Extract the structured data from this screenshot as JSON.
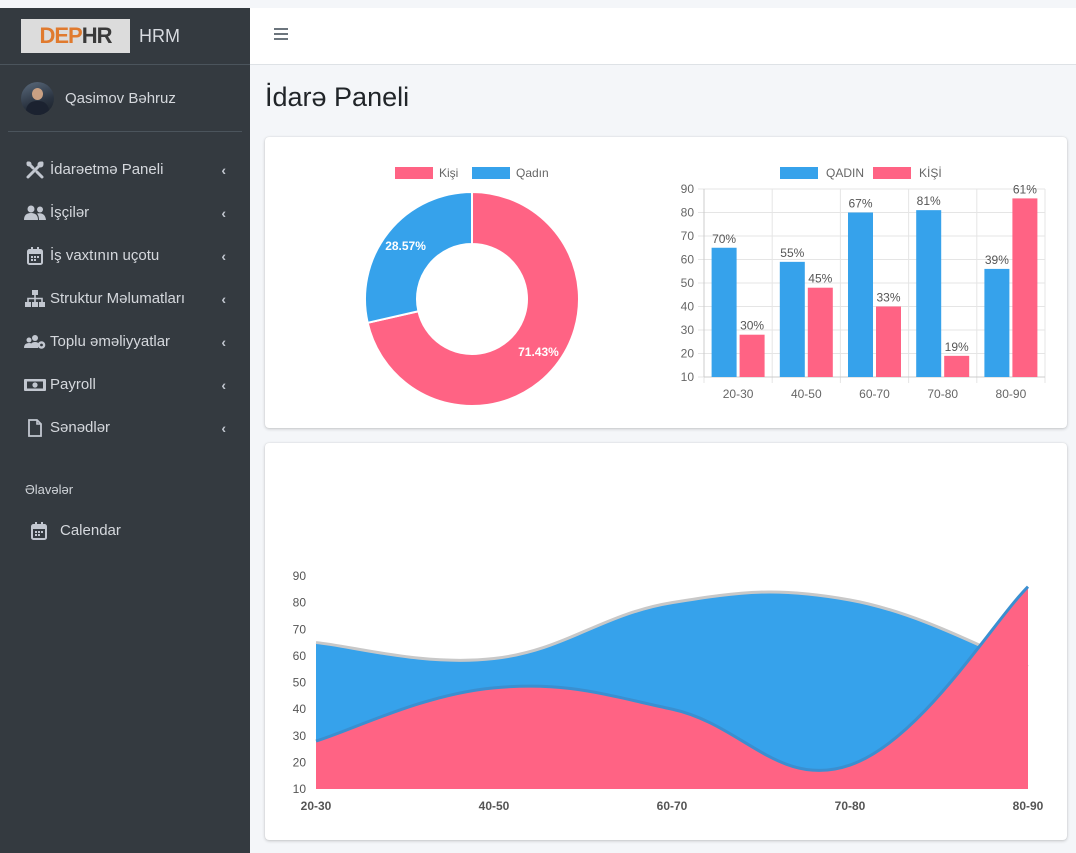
{
  "brand": {
    "logo_dep": "DEP",
    "logo_hr": "HR",
    "app_name": "HRM"
  },
  "user": {
    "name": "Qasimov Bəhruz"
  },
  "sidebar": {
    "items": [
      {
        "label": "İdarəetmə Paneli",
        "icon": "tools-icon"
      },
      {
        "label": "İşçilər",
        "icon": "users-icon"
      },
      {
        "label": "İş vaxtının uçotu",
        "icon": "calendar-icon"
      },
      {
        "label": "Struktur Məlumatları",
        "icon": "sitemap-icon"
      },
      {
        "label": "Toplu əməliyyatlar",
        "icon": "users-cog-icon"
      },
      {
        "label": "Payroll",
        "icon": "money-bill-icon"
      },
      {
        "label": "Sənədlər",
        "icon": "file-icon"
      }
    ],
    "extras_header": "Əlavələr",
    "extras": [
      {
        "label": "Calendar",
        "icon": "calendar-icon"
      }
    ]
  },
  "page": {
    "title": "İdarə Paneli"
  },
  "colors": {
    "pink": "#ff6384",
    "blue": "#36a2eb",
    "sidebar_bg": "#343a40"
  },
  "chart_data": [
    {
      "type": "pie",
      "subtype": "doughnut",
      "legend": [
        "Kişi",
        "Qadın"
      ],
      "values": [
        71.43,
        28.57
      ],
      "labels": [
        "71.43%",
        "28.57%"
      ],
      "colors": [
        "#ff6384",
        "#36a2eb"
      ],
      "legend_position": "top"
    },
    {
      "type": "bar",
      "categories": [
        "20-30",
        "40-50",
        "60-70",
        "70-80",
        "80-90"
      ],
      "series": [
        {
          "name": "QADIN",
          "values": [
            65,
            59,
            80,
            81,
            56
          ],
          "labels": [
            "70%",
            "55%",
            "67%",
            "81%",
            "39%"
          ],
          "color": "#36a2eb"
        },
        {
          "name": "KİŞİ",
          "values": [
            28,
            48,
            40,
            19,
            86
          ],
          "labels": [
            "30%",
            "45%",
            "33%",
            "19%",
            "61%"
          ],
          "color": "#ff6384"
        }
      ],
      "ylim": [
        10,
        90
      ],
      "yticks": [
        10,
        20,
        30,
        40,
        50,
        60,
        70,
        80,
        90
      ],
      "grid": true,
      "legend_position": "top"
    },
    {
      "type": "area",
      "categories": [
        "20-30",
        "40-50",
        "60-70",
        "70-80",
        "80-90"
      ],
      "series": [
        {
          "values": [
            65,
            59,
            80,
            81,
            56
          ],
          "color": "#36a2eb"
        },
        {
          "values": [
            28,
            48,
            40,
            19,
            86
          ],
          "color": "#ff6384"
        }
      ],
      "ylim": [
        10,
        90
      ],
      "yticks": [
        10,
        20,
        30,
        40,
        50,
        60,
        70,
        80,
        90
      ],
      "grid": false
    }
  ]
}
